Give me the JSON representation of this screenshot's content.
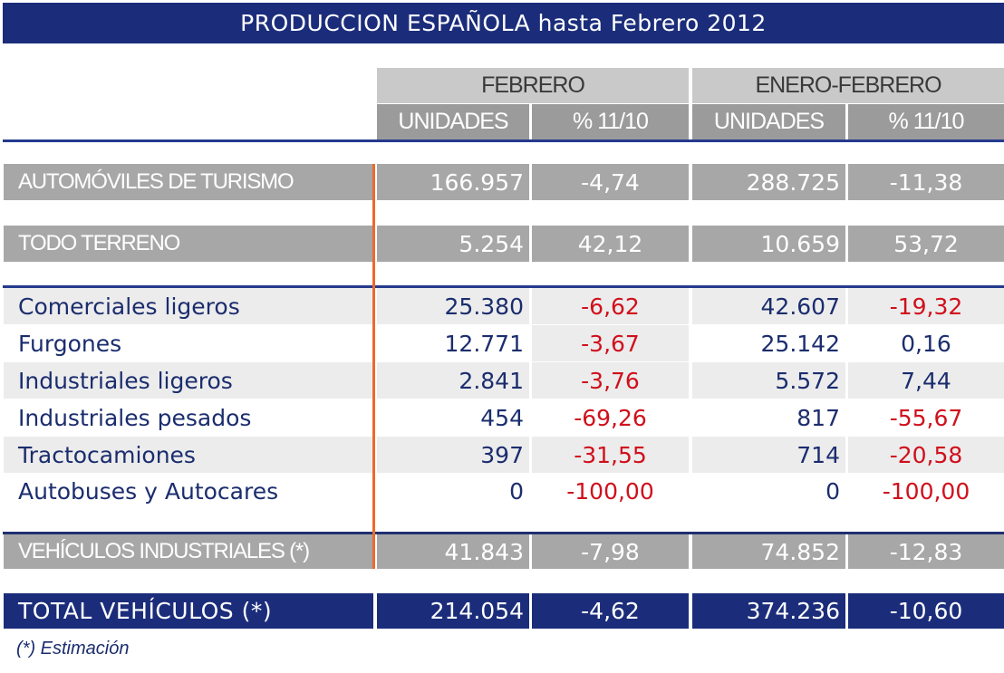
{
  "title": "PRODUCCION ESPAÑOLA hasta Febrero 2012",
  "header": {
    "groups": [
      "FEBRERO",
      "ENERO-FEBRERO"
    ],
    "subcols": [
      "UNIDADES",
      "% 11/10",
      "UNIDADES",
      "% 11/10"
    ]
  },
  "rows": {
    "turismo": {
      "label": "AUTOMÓVILES DE TURISMO",
      "v": [
        "166.957",
        "-4,74",
        "288.725",
        "-11,38"
      ]
    },
    "todoterreno": {
      "label": "TODO TERRENO",
      "v": [
        "5.254",
        "42,12",
        "10.659",
        "53,72"
      ]
    },
    "detail": [
      {
        "label": "Comerciales ligeros",
        "v": [
          "25.380",
          "-6,62",
          "42.607",
          "-19,32"
        ]
      },
      {
        "label": "Furgones",
        "v": [
          "12.771",
          "-3,67",
          "25.142",
          "0,16"
        ]
      },
      {
        "label": "Industriales ligeros",
        "v": [
          "2.841",
          "-3,76",
          "5.572",
          "7,44"
        ]
      },
      {
        "label": "Industriales pesados",
        "v": [
          "454",
          "-69,26",
          "817",
          "-55,67"
        ]
      },
      {
        "label": "Tractocamiones",
        "v": [
          "397",
          "-31,55",
          "714",
          "-20,58"
        ]
      },
      {
        "label": "Autobuses y Autocares",
        "v": [
          "0",
          "-100,00",
          "0",
          "-100,00"
        ]
      }
    ],
    "industriales": {
      "label": "VEHÍCULOS INDUSTRIALES (*)",
      "v": [
        "41.843",
        "-7,98",
        "74.852",
        "-12,83"
      ]
    },
    "total": {
      "label": "TOTAL VEHÍCULOS (*)",
      "v": [
        "214.054",
        "-4,62",
        "374.236",
        "-10,60"
      ]
    }
  },
  "footnote": "(*) Estimación",
  "colors": {
    "navy": "#1b2d7a",
    "negative": "#d0101c",
    "accent": "#ee6a2a"
  }
}
